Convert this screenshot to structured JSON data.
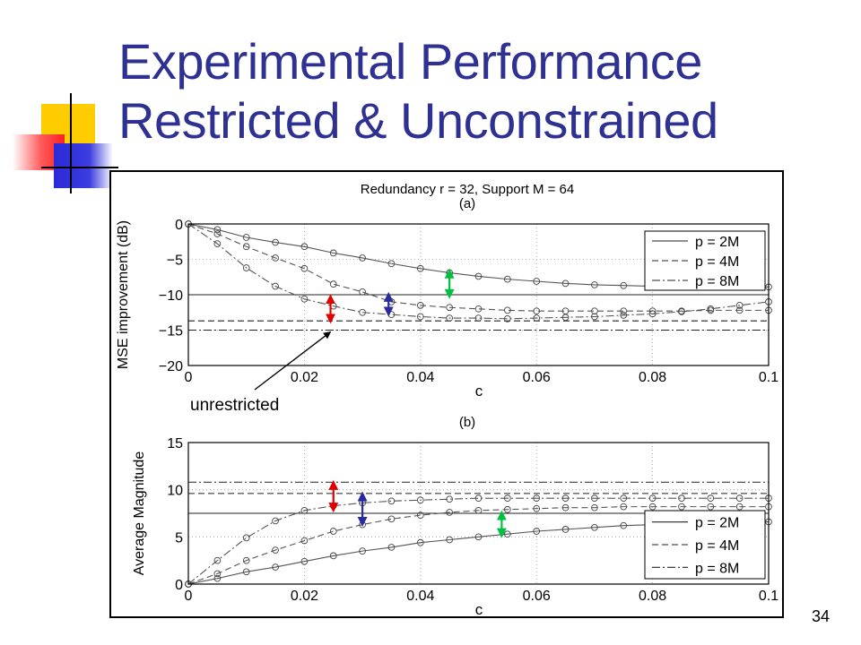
{
  "slide": {
    "title_line1": "Experimental Performance",
    "title_line2": "Restricted & Unconstrained",
    "page_number": "34"
  },
  "colors": {
    "title": "#2e3192",
    "deco_yellow": "#ffcc00",
    "deco_blue": "#2a2ad8",
    "deco_red": "#ff3b3b",
    "arrow_red": "#e00000",
    "arrow_blue": "#2a2aa0",
    "arrow_green": "#00c040"
  },
  "figure": {
    "title": "Redundancy r = 32, Support M = 64",
    "annotation": "unrestricted"
  },
  "chart_data": [
    {
      "type": "line",
      "panel_label": "(a)",
      "xlabel": "c",
      "ylabel": "MSE improvement (dB)",
      "xlim": [
        0,
        0.1
      ],
      "ylim": [
        -20,
        0
      ],
      "xticks": [
        "0",
        "0.02",
        "0.04",
        "0.06",
        "0.08",
        "0.1"
      ],
      "yticks": [
        "0",
        "−5",
        "−10",
        "−15",
        "−20"
      ],
      "grid": true,
      "legend_position": "top-right",
      "legend": [
        "p = 2M",
        "p = 4M",
        "p = 8M"
      ],
      "series": [
        {
          "name": "p = 2M",
          "style": "solid",
          "x": [
            0,
            0.005,
            0.01,
            0.015,
            0.02,
            0.025,
            0.03,
            0.035,
            0.04,
            0.045,
            0.05,
            0.055,
            0.06,
            0.065,
            0.07,
            0.075,
            0.08,
            0.085,
            0.09,
            0.095,
            0.1
          ],
          "y": [
            0,
            -0.8,
            -1.9,
            -2.6,
            -3.2,
            -4.1,
            -4.8,
            -5.6,
            -6.3,
            -6.9,
            -7.4,
            -7.8,
            -8.1,
            -8.4,
            -8.6,
            -8.7,
            -8.8,
            -8.8,
            -8.9,
            -8.9,
            -8.9
          ]
        },
        {
          "name": "p = 4M",
          "style": "dashed",
          "x": [
            0,
            0.005,
            0.01,
            0.015,
            0.02,
            0.025,
            0.03,
            0.035,
            0.04,
            0.045,
            0.05,
            0.055,
            0.06,
            0.065,
            0.07,
            0.075,
            0.08,
            0.085,
            0.09,
            0.095,
            0.1
          ],
          "y": [
            0,
            -1.4,
            -3.2,
            -4.8,
            -6.3,
            -8.5,
            -9.6,
            -11.0,
            -11.5,
            -11.8,
            -12.0,
            -12.2,
            -12.3,
            -12.3,
            -12.3,
            -12.3,
            -12.3,
            -12.3,
            -12.2,
            -12.2,
            -12.2
          ]
        },
        {
          "name": "p = 8M",
          "style": "dashdot",
          "x": [
            0,
            0.005,
            0.01,
            0.015,
            0.02,
            0.025,
            0.03,
            0.035,
            0.04,
            0.045,
            0.05,
            0.055,
            0.06,
            0.065,
            0.07,
            0.075,
            0.08,
            0.085,
            0.09,
            0.095,
            0.1
          ],
          "y": [
            0,
            -2.8,
            -6.2,
            -8.8,
            -10.6,
            -11.6,
            -12.5,
            -12.8,
            -13.1,
            -13.3,
            -13.3,
            -13.4,
            -13.3,
            -13.2,
            -13.1,
            -12.9,
            -12.7,
            -12.4,
            -12.0,
            -11.5,
            -11.0
          ]
        }
      ],
      "reference_lines": [
        {
          "name": "p = 2M",
          "style": "solid",
          "y": -10
        },
        {
          "name": "p = 4M",
          "style": "dashed",
          "y": -13.7
        },
        {
          "name": "p = 8M",
          "style": "dashdot",
          "y": -15
        }
      ]
    },
    {
      "type": "line",
      "panel_label": "(b)",
      "xlabel": "c",
      "ylabel": "Average Magnitude",
      "xlim": [
        0,
        0.1
      ],
      "ylim": [
        0,
        15
      ],
      "xticks": [
        "0",
        "0.02",
        "0.04",
        "0.06",
        "0.08",
        "0.1"
      ],
      "yticks": [
        "15",
        "10",
        "5",
        "0"
      ],
      "grid": true,
      "legend_position": "bottom-right",
      "legend": [
        "p = 2M",
        "p = 4M",
        "p = 8M"
      ],
      "series": [
        {
          "name": "p = 2M",
          "style": "solid",
          "x": [
            0,
            0.005,
            0.01,
            0.015,
            0.02,
            0.025,
            0.03,
            0.035,
            0.04,
            0.045,
            0.05,
            0.055,
            0.06,
            0.065,
            0.07,
            0.075,
            0.08,
            0.085,
            0.09,
            0.095,
            0.1
          ],
          "y": [
            0,
            0.6,
            1.3,
            1.8,
            2.4,
            3.0,
            3.5,
            3.9,
            4.4,
            4.7,
            5.0,
            5.3,
            5.6,
            5.8,
            6.0,
            6.2,
            6.3,
            6.4,
            6.5,
            6.5,
            6.6
          ]
        },
        {
          "name": "p = 4M",
          "style": "dashed",
          "x": [
            0,
            0.005,
            0.01,
            0.015,
            0.02,
            0.025,
            0.03,
            0.035,
            0.04,
            0.045,
            0.05,
            0.055,
            0.06,
            0.065,
            0.07,
            0.075,
            0.08,
            0.085,
            0.09,
            0.095,
            0.1
          ],
          "y": [
            0,
            1.1,
            2.5,
            3.6,
            4.6,
            5.6,
            6.3,
            6.9,
            7.3,
            7.6,
            7.8,
            7.9,
            8.0,
            8.1,
            8.1,
            8.2,
            8.2,
            8.2,
            8.2,
            8.2,
            8.2
          ]
        },
        {
          "name": "p = 8M",
          "style": "dashdot",
          "x": [
            0,
            0.005,
            0.01,
            0.015,
            0.02,
            0.025,
            0.03,
            0.035,
            0.04,
            0.045,
            0.05,
            0.055,
            0.06,
            0.065,
            0.07,
            0.075,
            0.08,
            0.085,
            0.09,
            0.095,
            0.1
          ],
          "y": [
            0,
            2.5,
            4.9,
            6.7,
            7.8,
            8.3,
            8.6,
            8.8,
            8.9,
            9.0,
            9.1,
            9.1,
            9.1,
            9.1,
            9.1,
            9.1,
            9.1,
            9.1,
            9.1,
            9.1,
            9.1
          ]
        }
      ],
      "reference_lines": [
        {
          "name": "p = 2M",
          "style": "solid",
          "y": 7.5
        },
        {
          "name": "p = 4M",
          "style": "dashed",
          "y": 9.6
        },
        {
          "name": "p = 8M",
          "style": "dashdot",
          "y": 10.8
        }
      ]
    }
  ]
}
